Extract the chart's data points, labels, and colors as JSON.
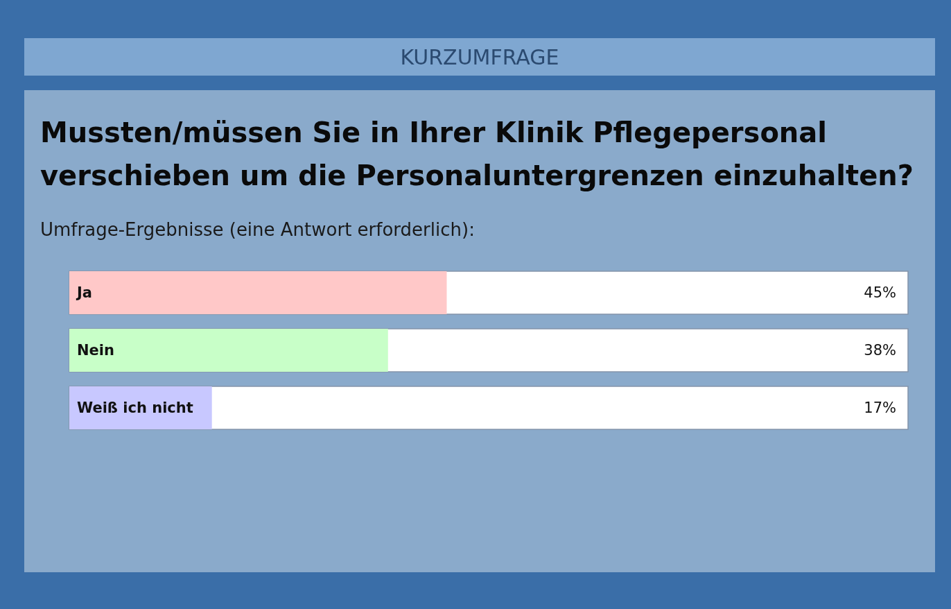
{
  "chart_data": {
    "type": "bar",
    "orientation": "horizontal",
    "annotations": [
      "KURZUMFRAGE"
    ],
    "title": "Mussten/müssen Sie in Ihrer Klinik Pflegepersonal verschieben um die Personaluntergrenzen einzuhalten?",
    "subtitle": "Umfrage-Ergebnisse (eine Antwort erforderlich):",
    "categories": [
      "Ja",
      "Nein",
      "Weiß ich nicht"
    ],
    "values": [
      45,
      38,
      17
    ],
    "colors": [
      "#ffc8c8",
      "#c8ffc8",
      "#c8c8ff"
    ],
    "value_labels": [
      "45%",
      "38%",
      "17%"
    ],
    "xlim": [
      0,
      100
    ],
    "tick_labels": "y"
  }
}
